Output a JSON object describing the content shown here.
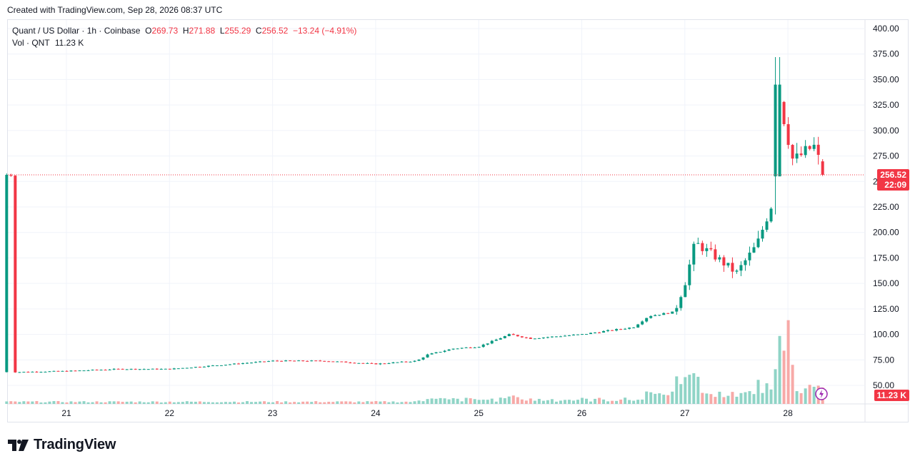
{
  "header": {
    "created_text": "Created with TradingView.com, Sep 28, 2026 08:37 UTC"
  },
  "legend": {
    "symbol": "Quant / US Dollar · 1h · Coinbase",
    "o_label": "O",
    "o_value": "269.73",
    "h_label": "H",
    "h_value": "271.88",
    "l_label": "L",
    "l_value": "255.29",
    "c_label": "C",
    "c_value": "256.52",
    "change": "−13.24 (−4.91%)",
    "vol_label": "Vol · QNT",
    "vol_value": "11.23 K"
  },
  "price_tag": {
    "price": "256.52",
    "countdown": "22:09",
    "color": "#f23645"
  },
  "volume_tag": {
    "value": "11.23 K",
    "color": "#f23645"
  },
  "footer": {
    "logo_text": "TradingView"
  },
  "colors": {
    "up": "#089981",
    "down": "#f23645",
    "up_vol": "#8fd4c6",
    "down_vol": "#f7a9a7"
  },
  "chart_data": {
    "type": "candlestick",
    "ylim": [
      50,
      400
    ],
    "y_ticks": [
      "400.00",
      "375.00",
      "350.00",
      "325.00",
      "300.00",
      "275.00",
      "250.00",
      "225.00",
      "200.00",
      "175.00",
      "150.00",
      "125.00",
      "100.00",
      "75.00",
      "50.00"
    ],
    "x_ticks": [
      "21",
      "22",
      "23",
      "24",
      "25",
      "26",
      "27",
      "28"
    ],
    "last_price": 256.52,
    "series": [
      {
        "name": "price",
        "days": [
          {
            "day": "20.5",
            "close": 63
          },
          {
            "day": "21",
            "close": 64
          },
          {
            "day": "21.5",
            "close": 66
          },
          {
            "day": "22",
            "close": 66
          },
          {
            "day": "22.5",
            "close": 70
          },
          {
            "day": "23",
            "close": 74
          },
          {
            "day": "23.5",
            "close": 74
          },
          {
            "day": "24",
            "close": 71
          },
          {
            "day": "24.4",
            "close": 74
          },
          {
            "day": "24.5",
            "close": 80
          },
          {
            "day": "24.75",
            "close": 86
          },
          {
            "day": "25",
            "close": 88
          },
          {
            "day": "25.3",
            "close": 100
          },
          {
            "day": "25.5",
            "close": 96
          },
          {
            "day": "26",
            "close": 100
          },
          {
            "day": "26.5",
            "close": 107
          },
          {
            "day": "26.65",
            "close": 118
          },
          {
            "day": "26.9",
            "close": 122
          },
          {
            "day": "27",
            "close": 150
          },
          {
            "day": "27.1",
            "close": 190
          },
          {
            "day": "27.3",
            "close": 176
          },
          {
            "day": "27.5",
            "close": 160
          },
          {
            "day": "27.7",
            "close": 188
          },
          {
            "day": "27.85",
            "close": 230
          },
          {
            "day": "27.9",
            "close": 340
          },
          {
            "day": "28.05",
            "close": 270
          },
          {
            "day": "28.25",
            "close": 285
          },
          {
            "day": "28.35",
            "close": 256.52
          }
        ]
      }
    ]
  }
}
